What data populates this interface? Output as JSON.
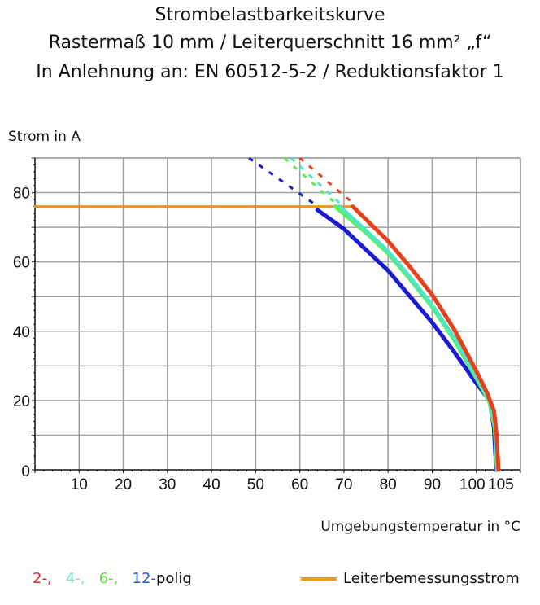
{
  "title_lines": [
    "Strombelastbarkeitskurve",
    "Rastermaß 10 mm / Leiterquerschnitt 16 mm² „f“",
    "In Anlehnung an: EN 60512-5-2 / Reduktionsfaktor 1"
  ],
  "chart_data": {
    "type": "line",
    "title": "Strombelastbarkeitskurve",
    "ylabel": "Strom in A",
    "xlabel": "Umgebungstemperatur in °C",
    "xlim": [
      0,
      110
    ],
    "ylim": [
      0,
      90
    ],
    "x_ticks": [
      10,
      20,
      30,
      40,
      50,
      60,
      70,
      80,
      90,
      100,
      105
    ],
    "y_ticks": [
      0,
      20,
      40,
      60,
      80
    ],
    "grid": true,
    "series": [
      {
        "name": "2-",
        "color": "#e8401c",
        "points": [
          [
            72,
            76
          ],
          [
            76,
            71
          ],
          [
            80,
            66
          ],
          [
            85,
            58.5
          ],
          [
            90,
            50.5
          ],
          [
            95,
            40.5
          ],
          [
            100,
            28.5
          ],
          [
            102.5,
            22
          ],
          [
            104,
            17
          ],
          [
            104.6,
            10
          ],
          [
            105,
            0
          ]
        ],
        "dashed_points": [
          [
            60,
            90
          ],
          [
            72,
            77
          ]
        ]
      },
      {
        "name": "4-",
        "color": "#4de8c0",
        "points": [
          [
            69,
            76
          ],
          [
            75,
            69
          ],
          [
            80,
            63
          ],
          [
            85,
            55.5
          ],
          [
            90,
            47.5
          ],
          [
            95,
            38
          ],
          [
            100,
            27
          ],
          [
            103,
            20
          ],
          [
            104.3,
            12
          ],
          [
            104.8,
            0
          ]
        ],
        "dashed_points": [
          [
            58,
            90
          ],
          [
            69,
            77
          ]
        ]
      },
      {
        "name": "6-",
        "color": "#5ef04a",
        "points": [
          [
            68,
            76
          ],
          [
            75,
            68.5
          ],
          [
            80,
            62.5
          ],
          [
            85,
            55
          ],
          [
            90,
            47
          ],
          [
            95,
            37.5
          ],
          [
            100,
            26.5
          ],
          [
            103,
            19.5
          ],
          [
            104.2,
            12
          ],
          [
            104.7,
            0
          ]
        ],
        "dashed_points": [
          [
            56.5,
            90
          ],
          [
            68,
            77
          ]
        ]
      },
      {
        "name": "12-",
        "color": "#1a1ad0",
        "points": [
          [
            64,
            75
          ],
          [
            70,
            69.5
          ],
          [
            80,
            57.5
          ],
          [
            85,
            50
          ],
          [
            90,
            42.5
          ],
          [
            95,
            34
          ],
          [
            100,
            25
          ],
          [
            103,
            20
          ],
          [
            104,
            12
          ],
          [
            104.5,
            0
          ]
        ],
        "dashed_points": [
          [
            48.5,
            90
          ],
          [
            63,
            77
          ]
        ]
      },
      {
        "name": "Leiterbemessungsstrom",
        "color": "#f7931e",
        "points": [
          [
            0,
            76
          ],
          [
            72,
            76
          ]
        ]
      }
    ],
    "legend": {
      "placement": "bottom",
      "poles": [
        {
          "label": "2-,",
          "color": "#e8243c"
        },
        {
          "label": "4-,",
          "color": "#80e0d0"
        },
        {
          "label": "6-,",
          "color": "#60e040"
        },
        {
          "label": "12-",
          "color": "#2a5ad0"
        }
      ],
      "poles_suffix": "polig",
      "rated_current_label": "Leiterbemessungsstrom"
    }
  }
}
